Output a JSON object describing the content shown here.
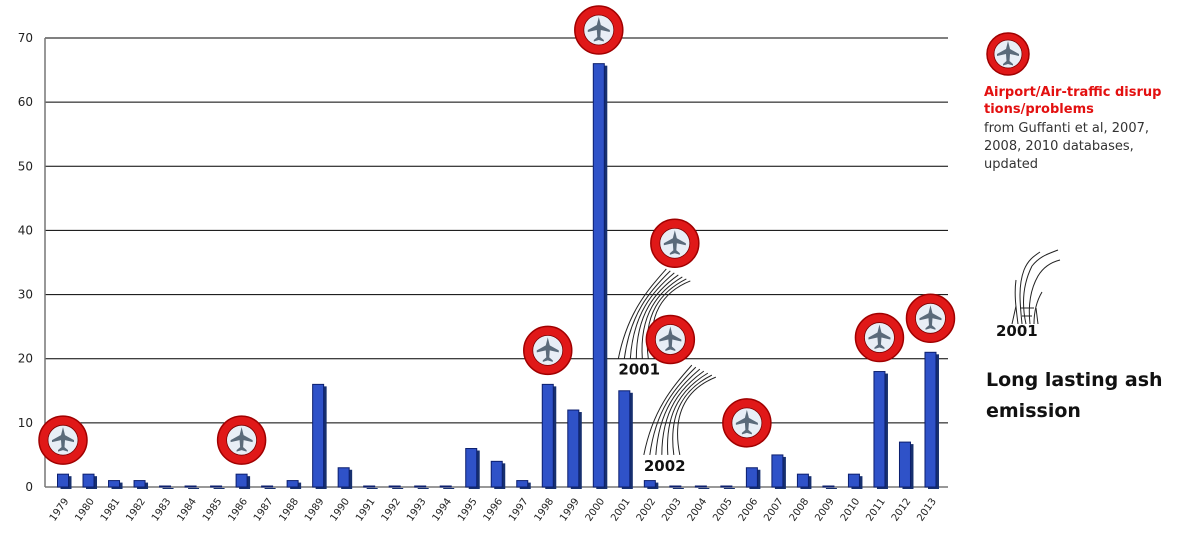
{
  "chart_data": {
    "type": "bar",
    "categories": [
      "1979",
      "1980",
      "1981",
      "1982",
      "1983",
      "1984",
      "1985",
      "1986",
      "1987",
      "1988",
      "1989",
      "1990",
      "1991",
      "1992",
      "1993",
      "1994",
      "1995",
      "1996",
      "1997",
      "1998",
      "1999",
      "2000",
      "2001",
      "2002",
      "2003",
      "2004",
      "2005",
      "2006",
      "2007",
      "2008",
      "2009",
      "2010",
      "2011",
      "2012",
      "2013"
    ],
    "values": [
      2,
      2,
      1,
      1,
      0,
      0,
      0,
      2,
      0,
      1,
      16,
      3,
      0,
      0,
      0,
      0,
      6,
      4,
      1,
      16,
      12,
      66,
      15,
      1,
      0,
      0,
      0,
      3,
      5,
      2,
      0,
      2,
      18,
      7,
      21
    ],
    "ylim": [
      0,
      70
    ],
    "yticks": [
      0,
      10,
      20,
      30,
      40,
      50,
      60,
      70
    ],
    "grid": true,
    "title": "",
    "xlabel": "",
    "ylabel": "",
    "annotations": {
      "airport_icon_years": [
        "1979",
        "1986",
        "1998",
        "2000",
        "2002",
        "2003",
        "2006",
        "2011",
        "2013"
      ],
      "ash_plume_labels": [
        {
          "year": "2001",
          "label": "2001"
        },
        {
          "year": "2002",
          "label": "2002"
        }
      ]
    },
    "colors": {
      "bar": "#2f52c8",
      "icon": "#e01818"
    }
  },
  "legend": {
    "airport_title": "Airport/Air-traffic disruptions/problems",
    "source": "from Guffanti et al, 2007, 2008, 2010 databases, updated",
    "plume_year": "2001",
    "ash_label": "Long lasting ash emission",
    "icon": "airplane-icon"
  }
}
